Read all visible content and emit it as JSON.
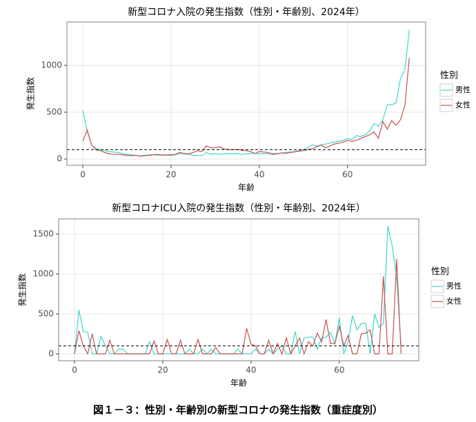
{
  "caption": "図１－３：性別・年齢別の新型コロナの発生指数（重症度別）",
  "chart_data": [
    {
      "type": "line",
      "title": "新型コロナ入院の発生指数（性別・年齢別、2024年）",
      "x_label": "年齢",
      "y_label": "発生指数",
      "legend_title": "性別",
      "legend": "right",
      "grid": true,
      "reference_line": 100,
      "x": [
        0,
        1,
        2,
        3,
        4,
        5,
        6,
        7,
        8,
        9,
        10,
        11,
        12,
        13,
        14,
        15,
        16,
        17,
        18,
        19,
        20,
        21,
        22,
        23,
        24,
        25,
        26,
        27,
        28,
        29,
        30,
        31,
        32,
        33,
        34,
        35,
        36,
        37,
        38,
        39,
        40,
        41,
        42,
        43,
        44,
        45,
        46,
        47,
        48,
        49,
        50,
        51,
        52,
        53,
        54,
        55,
        56,
        57,
        58,
        59,
        60,
        61,
        62,
        63,
        64,
        65,
        66,
        67,
        68,
        69,
        70,
        71,
        72,
        73,
        74
      ],
      "xlim": [
        -3.6,
        77.7
      ],
      "xticks": [
        0,
        20,
        40,
        60
      ],
      "ylim": [
        -66,
        1463
      ],
      "yticks": [
        0,
        500,
        1000
      ],
      "series": [
        {
          "name": "男性",
          "color": "#3fd6cc",
          "values": [
            520,
            300,
            150,
            110,
            100,
            90,
            80,
            75,
            70,
            60,
            50,
            45,
            40,
            35,
            40,
            45,
            45,
            40,
            45,
            40,
            40,
            45,
            60,
            55,
            50,
            40,
            40,
            35,
            70,
            50,
            60,
            50,
            55,
            60,
            55,
            60,
            50,
            55,
            60,
            60,
            55,
            60,
            55,
            60,
            60,
            65,
            70,
            75,
            80,
            90,
            100,
            120,
            150,
            140,
            150,
            160,
            170,
            180,
            190,
            200,
            220,
            210,
            250,
            240,
            260,
            300,
            380,
            350,
            420,
            580,
            580,
            600,
            860,
            950,
            1380
          ]
        },
        {
          "name": "女性",
          "color": "#c8504e",
          "values": [
            190,
            310,
            150,
            100,
            90,
            70,
            55,
            50,
            50,
            45,
            40,
            35,
            40,
            30,
            35,
            40,
            45,
            50,
            40,
            45,
            45,
            50,
            70,
            60,
            55,
            70,
            90,
            80,
            140,
            120,
            120,
            130,
            110,
            100,
            100,
            100,
            95,
            90,
            80,
            60,
            80,
            75,
            70,
            50,
            55,
            65,
            60,
            70,
            75,
            85,
            90,
            100,
            110,
            130,
            150,
            120,
            140,
            160,
            170,
            180,
            200,
            190,
            200,
            220,
            240,
            260,
            290,
            220,
            400,
            320,
            410,
            360,
            420,
            570,
            1080
          ]
        }
      ]
    },
    {
      "type": "line",
      "title": "新型コロナICU入院の発生指数（性別・年齢別、2024年）",
      "x_label": "年齢",
      "y_label": "発生指数",
      "legend_title": "性別",
      "legend": "right",
      "grid": true,
      "reference_line": 100,
      "x": [
        0,
        1,
        2,
        3,
        4,
        5,
        6,
        7,
        8,
        9,
        10,
        11,
        12,
        13,
        14,
        15,
        16,
        17,
        18,
        19,
        20,
        21,
        22,
        23,
        24,
        25,
        26,
        27,
        28,
        29,
        30,
        31,
        32,
        33,
        34,
        35,
        36,
        37,
        38,
        39,
        40,
        41,
        42,
        43,
        44,
        45,
        46,
        47,
        48,
        49,
        50,
        51,
        52,
        53,
        54,
        55,
        56,
        57,
        58,
        59,
        60,
        61,
        62,
        63,
        64,
        65,
        66,
        67,
        68,
        69,
        70,
        71,
        72,
        73,
        74
      ],
      "xlim": [
        -3.6,
        78
      ],
      "xticks": [
        0,
        20,
        40,
        60
      ],
      "ylim": [
        -86,
        1690
      ],
      "yticks": [
        0,
        500,
        1000,
        1500
      ],
      "series": [
        {
          "name": "男性",
          "color": "#3fd6cc",
          "values": [
            0,
            550,
            280,
            270,
            0,
            0,
            220,
            100,
            0,
            0,
            60,
            60,
            0,
            0,
            0,
            0,
            0,
            150,
            0,
            0,
            0,
            0,
            0,
            0,
            0,
            0,
            60,
            0,
            0,
            60,
            0,
            60,
            0,
            0,
            0,
            0,
            0,
            60,
            0,
            0,
            0,
            60,
            0,
            0,
            60,
            0,
            60,
            100,
            0,
            0,
            280,
            0,
            200,
            210,
            210,
            60,
            200,
            210,
            270,
            130,
            450,
            0,
            150,
            480,
            300,
            380,
            380,
            0,
            500,
            330,
            380,
            1600,
            1350,
            950,
            100
          ]
        },
        {
          "name": "女性",
          "color": "#c8504e",
          "values": [
            0,
            290,
            100,
            0,
            250,
            0,
            0,
            0,
            170,
            0,
            0,
            0,
            0,
            0,
            0,
            0,
            0,
            0,
            160,
            0,
            0,
            180,
            0,
            0,
            170,
            0,
            0,
            0,
            180,
            0,
            0,
            0,
            80,
            0,
            0,
            0,
            0,
            0,
            0,
            320,
            120,
            100,
            0,
            0,
            170,
            0,
            130,
            0,
            200,
            0,
            100,
            200,
            0,
            150,
            100,
            260,
            150,
            430,
            130,
            130,
            350,
            100,
            230,
            0,
            0,
            250,
            260,
            300,
            0,
            0,
            970,
            0,
            0,
            1190,
            0
          ]
        }
      ]
    }
  ]
}
